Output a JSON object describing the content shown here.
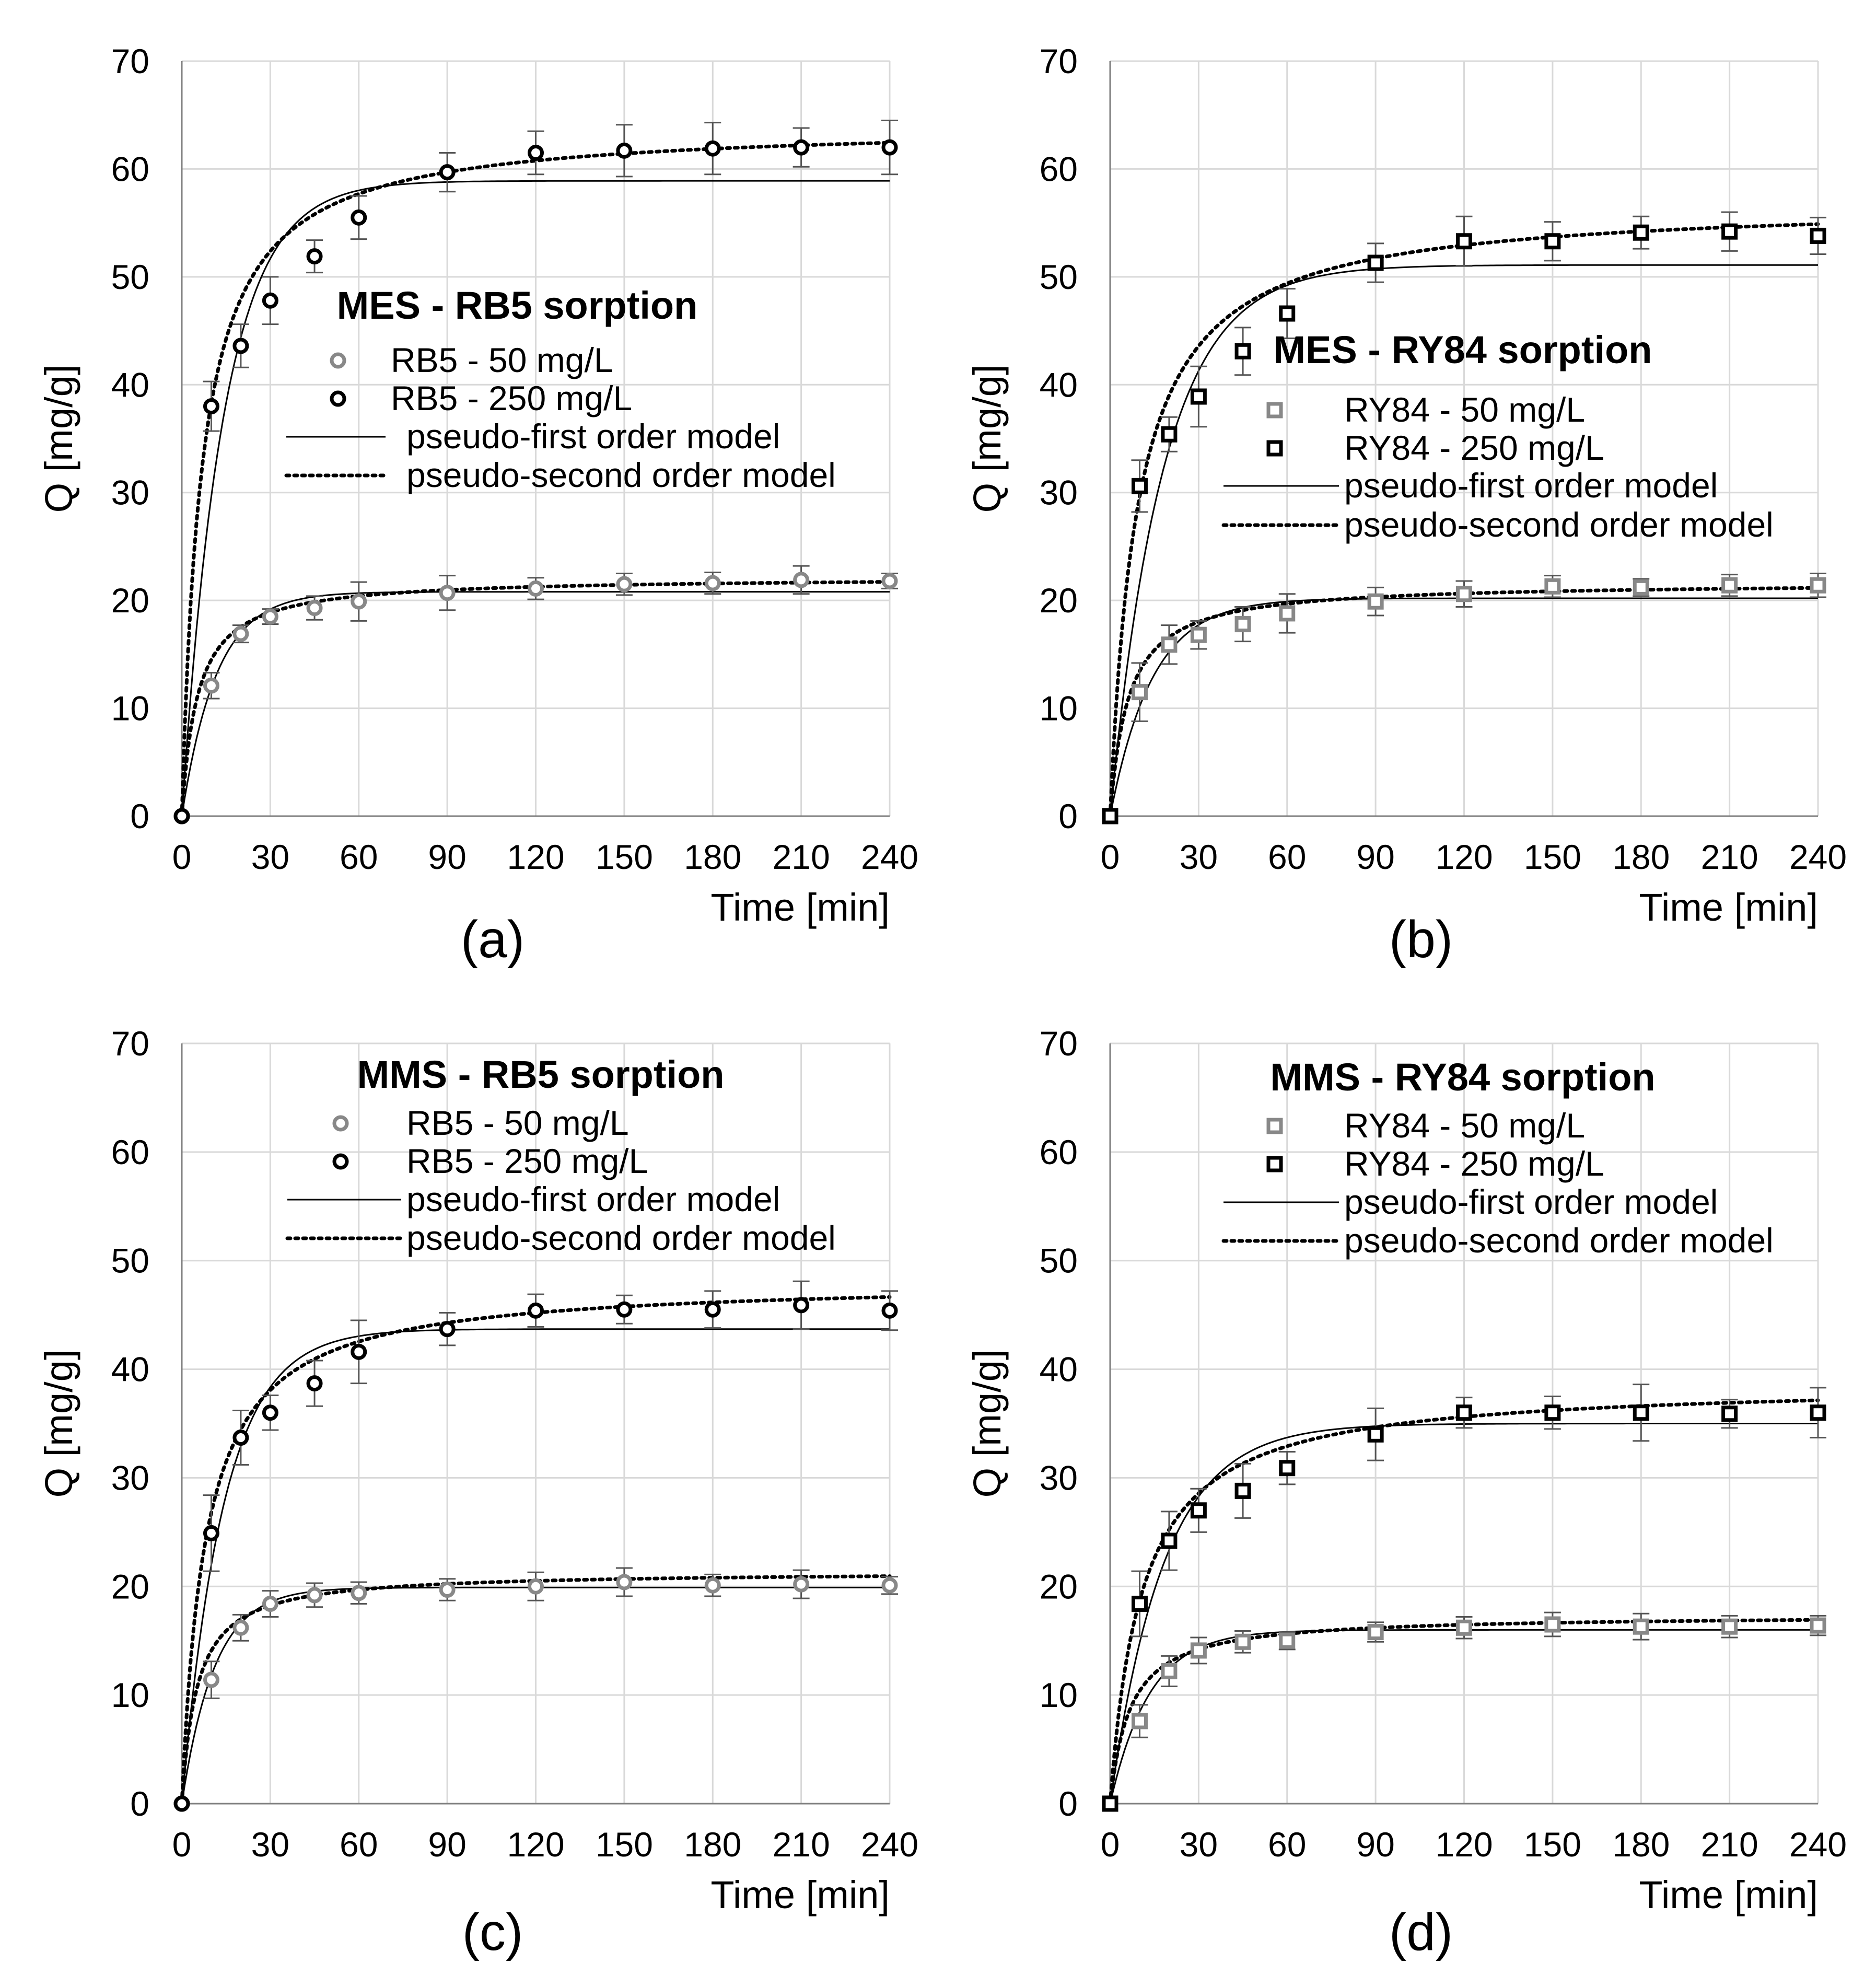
{
  "chart_data": [
    {
      "type": "scatter",
      "panel_label": "(a)",
      "title": "MES - RB5 sorption",
      "xlabel": "Time [min]",
      "ylabel": "Q [mg/g]",
      "xlim": [
        0,
        240
      ],
      "ylim": [
        0,
        70
      ],
      "xticks": [
        0,
        30,
        60,
        90,
        120,
        150,
        180,
        210,
        240
      ],
      "yticks": [
        0,
        10,
        20,
        30,
        40,
        50,
        60,
        70
      ],
      "grid": true,
      "marker": "circle",
      "legend": [
        "RB5 - 50 mg/L",
        "RB5 - 250 mg/L",
        "pseudo-first order model",
        "pseudo-second order model"
      ],
      "series": [
        {
          "name": "RB5 - 50 mg/L",
          "color": "#888888",
          "x": [
            0,
            10,
            20,
            30,
            45,
            60,
            90,
            120,
            150,
            180,
            210,
            240
          ],
          "y": [
            0,
            12.1,
            16.9,
            18.5,
            19.3,
            19.9,
            20.7,
            21.1,
            21.5,
            21.6,
            21.9,
            21.8
          ],
          "err": [
            0,
            1.2,
            0.8,
            0.7,
            1.1,
            1.8,
            1.6,
            1.0,
            1.0,
            1.0,
            1.3,
            0.7
          ]
        },
        {
          "name": "RB5 - 250 mg/L",
          "color": "#000000",
          "x": [
            0,
            10,
            20,
            30,
            45,
            60,
            90,
            120,
            150,
            180,
            210,
            240
          ],
          "y": [
            0,
            38.0,
            43.6,
            47.8,
            51.9,
            55.5,
            59.7,
            61.5,
            61.7,
            61.9,
            62.0,
            62.0
          ],
          "err": [
            0,
            2.3,
            2.0,
            2.2,
            1.5,
            2.0,
            1.8,
            2.0,
            2.4,
            2.4,
            1.8,
            2.5
          ]
        }
      ],
      "models": [
        {
          "name": "pseudo-first order model",
          "order": 1,
          "params": [
            {
              "qe": 20.8,
              "k": 0.085
            },
            {
              "qe": 58.9,
              "k": 0.07
            }
          ]
        },
        {
          "name": "pseudo-second order model",
          "order": 2,
          "params": [
            {
              "qe": 22.2,
              "k": 0.0085
            },
            {
              "qe": 64.2,
              "k": 0.0023
            }
          ]
        }
      ]
    },
    {
      "type": "scatter",
      "panel_label": "(b)",
      "title": "MES - RY84 sorption",
      "xlabel": "Time [min]",
      "ylabel": "Q [mg/g]",
      "xlim": [
        0,
        240
      ],
      "ylim": [
        0,
        70
      ],
      "xticks": [
        0,
        30,
        60,
        90,
        120,
        150,
        180,
        210,
        240
      ],
      "yticks": [
        0,
        10,
        20,
        30,
        40,
        50,
        60,
        70
      ],
      "grid": true,
      "marker": "square",
      "legend": [
        "RY84 - 50 mg/L",
        "RY84 - 250 mg/L",
        "pseudo-first order model",
        "pseudo-second order model"
      ],
      "series": [
        {
          "name": "RY84 - 50 mg/L",
          "color": "#888888",
          "x": [
            0,
            10,
            20,
            30,
            45,
            60,
            90,
            120,
            150,
            180,
            210,
            240
          ],
          "y": [
            0,
            11.5,
            15.9,
            16.8,
            17.8,
            18.8,
            19.9,
            20.6,
            21.3,
            21.2,
            21.4,
            21.4
          ],
          "err": [
            0,
            2.7,
            1.8,
            1.3,
            1.6,
            1.8,
            1.3,
            1.2,
            1.0,
            0.8,
            1.0,
            1.1
          ]
        },
        {
          "name": "RY84 - 250 mg/L",
          "color": "#000000",
          "x": [
            0,
            10,
            20,
            30,
            45,
            60,
            90,
            120,
            150,
            180,
            210,
            240
          ],
          "y": [
            0,
            30.6,
            35.4,
            38.9,
            43.1,
            46.6,
            51.3,
            53.3,
            53.3,
            54.1,
            54.2,
            53.8
          ],
          "err": [
            0,
            2.4,
            1.6,
            2.8,
            2.2,
            2.3,
            1.8,
            2.3,
            1.8,
            1.5,
            1.8,
            1.7
          ]
        }
      ],
      "models": [
        {
          "name": "pseudo-first order model",
          "order": 1,
          "params": [
            {
              "qe": 20.2,
              "k": 0.07
            },
            {
              "qe": 51.1,
              "k": 0.055
            }
          ]
        },
        {
          "name": "pseudo-second order model",
          "order": 2,
          "params": [
            {
              "qe": 21.7,
              "k": 0.0075
            },
            {
              "qe": 57.0,
              "k": 0.0019
            }
          ]
        }
      ]
    },
    {
      "type": "scatter",
      "panel_label": "(c)",
      "title": "MMS - RB5 sorption",
      "xlabel": "Time [min]",
      "ylabel": "Q [mg/g]",
      "xlim": [
        0,
        240
      ],
      "ylim": [
        0,
        70
      ],
      "xticks": [
        0,
        30,
        60,
        90,
        120,
        150,
        180,
        210,
        240
      ],
      "yticks": [
        0,
        10,
        20,
        30,
        40,
        50,
        60,
        70
      ],
      "grid": true,
      "marker": "circle",
      "legend": [
        "RB5 - 50 mg/L",
        "RB5 - 250 mg/L",
        "pseudo-first order model",
        "pseudo-second order model"
      ],
      "series": [
        {
          "name": "RB5 - 50 mg/L",
          "color": "#888888",
          "x": [
            0,
            10,
            20,
            30,
            45,
            60,
            90,
            120,
            150,
            180,
            210,
            240
          ],
          "y": [
            0,
            11.4,
            16.2,
            18.4,
            19.2,
            19.4,
            19.7,
            20.0,
            20.4,
            20.1,
            20.2,
            20.1
          ],
          "err": [
            0,
            1.7,
            1.2,
            1.2,
            1.1,
            1.0,
            1.0,
            1.3,
            1.3,
            1.0,
            1.3,
            0.8
          ]
        },
        {
          "name": "RB5 - 250 mg/L",
          "color": "#000000",
          "x": [
            0,
            10,
            20,
            30,
            45,
            60,
            90,
            120,
            150,
            180,
            210,
            240
          ],
          "y": [
            0,
            24.9,
            33.7,
            36.0,
            38.7,
            41.6,
            43.7,
            45.4,
            45.5,
            45.5,
            45.9,
            45.4
          ],
          "err": [
            0,
            3.5,
            2.5,
            1.6,
            2.1,
            2.9,
            1.5,
            1.5,
            1.3,
            1.7,
            2.2,
            1.8
          ]
        }
      ],
      "models": [
        {
          "name": "pseudo-first order model",
          "order": 1,
          "params": [
            {
              "qe": 19.9,
              "k": 0.09
            },
            {
              "qe": 43.7,
              "k": 0.07
            }
          ]
        },
        {
          "name": "pseudo-second order model",
          "order": 2,
          "params": [
            {
              "qe": 21.4,
              "k": 0.009
            },
            {
              "qe": 48.2,
              "k": 0.0026
            }
          ]
        }
      ]
    },
    {
      "type": "scatter",
      "panel_label": "(d)",
      "title": "MMS - RY84 sorption",
      "xlabel": "Time [min]",
      "ylabel": "Q [mg/g]",
      "xlim": [
        0,
        240
      ],
      "ylim": [
        0,
        70
      ],
      "xticks": [
        0,
        30,
        60,
        90,
        120,
        150,
        180,
        210,
        240
      ],
      "yticks": [
        0,
        10,
        20,
        30,
        40,
        50,
        60,
        70
      ],
      "grid": true,
      "marker": "square",
      "legend": [
        "RY84 - 50 mg/L",
        "RY84 - 250 mg/L",
        "pseudo-first order model",
        "pseudo-second order model"
      ],
      "series": [
        {
          "name": "RY84 - 50 mg/L",
          "color": "#888888",
          "x": [
            0,
            10,
            20,
            30,
            45,
            60,
            90,
            120,
            150,
            180,
            210,
            240
          ],
          "y": [
            0,
            7.6,
            12.2,
            14.1,
            14.9,
            15.0,
            15.8,
            16.2,
            16.5,
            16.3,
            16.3,
            16.4
          ],
          "err": [
            0,
            1.5,
            1.4,
            1.2,
            1.0,
            0.8,
            0.9,
            1.0,
            1.1,
            1.2,
            1.0,
            0.9
          ]
        },
        {
          "name": "RY84 - 250 mg/L",
          "color": "#000000",
          "x": [
            0,
            10,
            20,
            30,
            45,
            60,
            90,
            120,
            150,
            180,
            210,
            240
          ],
          "y": [
            0,
            18.4,
            24.2,
            27.0,
            28.8,
            30.9,
            34.0,
            36.0,
            36.0,
            36.0,
            35.9,
            36.0
          ],
          "err": [
            0,
            3.0,
            2.7,
            2.0,
            2.5,
            1.5,
            2.4,
            1.4,
            1.5,
            2.6,
            1.3,
            2.3
          ]
        }
      ],
      "models": [
        {
          "name": "pseudo-first order model",
          "order": 1,
          "params": [
            {
              "qe": 16.0,
              "k": 0.075
            },
            {
              "qe": 35.0,
              "k": 0.055
            }
          ]
        },
        {
          "name": "pseudo-second order model",
          "order": 2,
          "params": [
            {
              "qe": 17.4,
              "k": 0.0085
            },
            {
              "qe": 38.8,
              "k": 0.0024
            }
          ]
        }
      ]
    }
  ]
}
